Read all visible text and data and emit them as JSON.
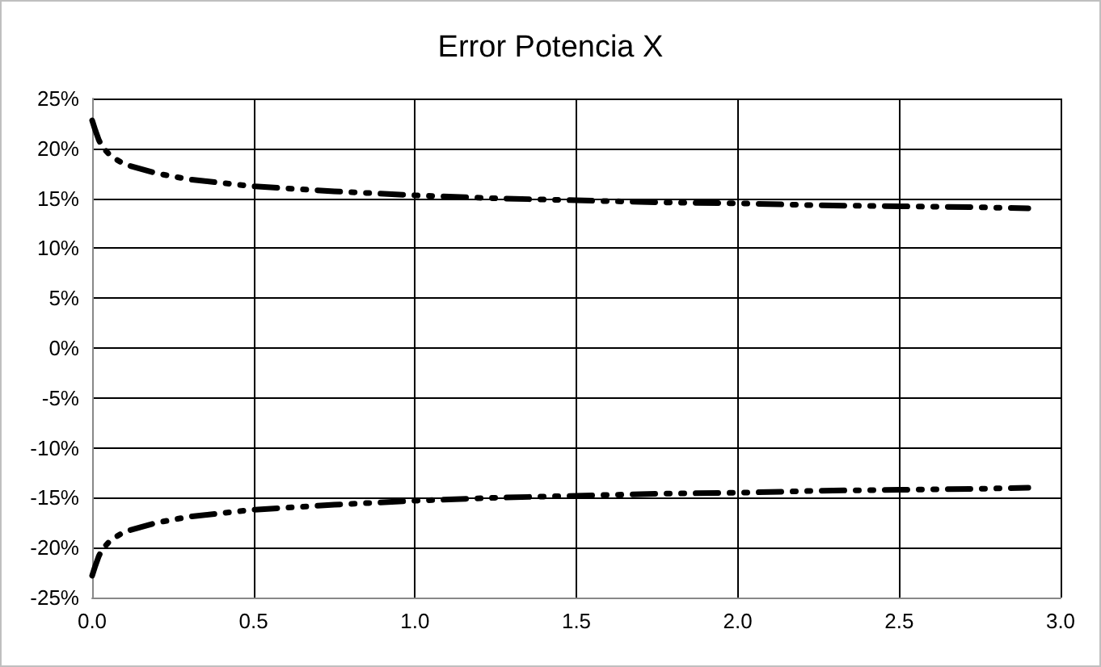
{
  "chart_data": {
    "type": "line",
    "title": "Error Potencia X",
    "x": [
      0,
      0.01,
      0.02,
      0.03,
      0.05,
      0.07,
      0.1,
      0.2,
      0.3,
      0.5,
      0.75,
      1.0,
      1.25,
      1.5,
      1.75,
      2.0,
      2.25,
      2.5,
      2.75,
      2.9
    ],
    "series": [
      {
        "color": "#000000",
        "values": [
          22.8,
          21.8,
          20.9,
          20.2,
          19.5,
          19.0,
          18.4,
          17.5,
          16.9,
          16.2,
          15.7,
          15.3,
          15.0,
          14.8,
          14.6,
          14.5,
          14.3,
          14.2,
          14.1,
          14.0
        ]
      },
      {
        "color": "#000000",
        "values": [
          -22.8,
          -21.8,
          -20.9,
          -20.2,
          -19.5,
          -19.0,
          -18.4,
          -17.5,
          -16.9,
          -16.2,
          -15.7,
          -15.3,
          -15.0,
          -14.8,
          -14.6,
          -14.5,
          -14.3,
          -14.2,
          -14.1,
          -14.0
        ]
      }
    ],
    "xlim": [
      0,
      3
    ],
    "xticks": [
      {
        "value": 0,
        "label": "0.0"
      },
      {
        "value": 0.5,
        "label": "0.5"
      },
      {
        "value": 1,
        "label": "1.0"
      },
      {
        "value": 1.5,
        "label": "1.5"
      },
      {
        "value": 2,
        "label": "2.0"
      },
      {
        "value": 2.5,
        "label": "2.5"
      },
      {
        "value": 3,
        "label": "3.0"
      }
    ],
    "ylim": [
      -25,
      25
    ],
    "yticks": [
      {
        "value": -25,
        "label": "-25%"
      },
      {
        "value": -20,
        "label": "-20%"
      },
      {
        "value": -15,
        "label": "-15%"
      },
      {
        "value": -10,
        "label": "-10%"
      },
      {
        "value": -5,
        "label": "-5%"
      },
      {
        "value": 0,
        "label": "0%"
      },
      {
        "value": 5,
        "label": "5%"
      },
      {
        "value": 10,
        "label": "10%"
      },
      {
        "value": 15,
        "label": "15%"
      },
      {
        "value": 20,
        "label": "20%"
      },
      {
        "value": 25,
        "label": "25%"
      }
    ],
    "grid": true,
    "marker": "none",
    "line_style": "dashed"
  }
}
